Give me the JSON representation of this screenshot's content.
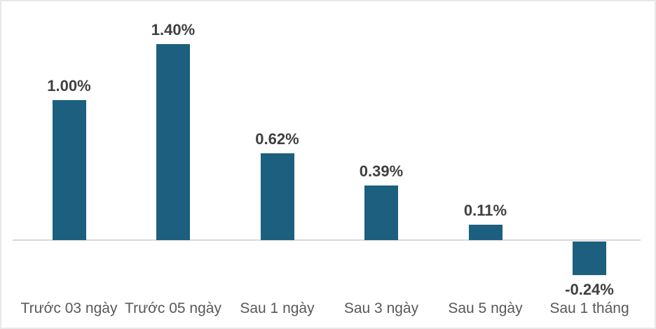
{
  "chart_data": {
    "type": "bar",
    "title": "",
    "xlabel": "",
    "ylabel": "",
    "categories": [
      "Trước 03 ngày",
      "Trước 05 ngày",
      "Sau 1 ngày",
      "Sau 3 ngày",
      "Sau 5 ngày",
      "Sau 1 tháng"
    ],
    "values": [
      1.0,
      1.4,
      0.62,
      0.39,
      0.11,
      -0.24
    ],
    "value_labels": [
      "1.00%",
      "1.40%",
      "0.62%",
      "0.39%",
      "0.11%",
      "-0.24%"
    ],
    "ylim": [
      -0.5,
      1.6
    ],
    "grid": false,
    "legend_position": "none",
    "bar_color": "#1d5f7f",
    "axis_line_color": "#d9d9d9",
    "value_label_color": "#3f3f3f",
    "category_label_color": "#595959"
  }
}
